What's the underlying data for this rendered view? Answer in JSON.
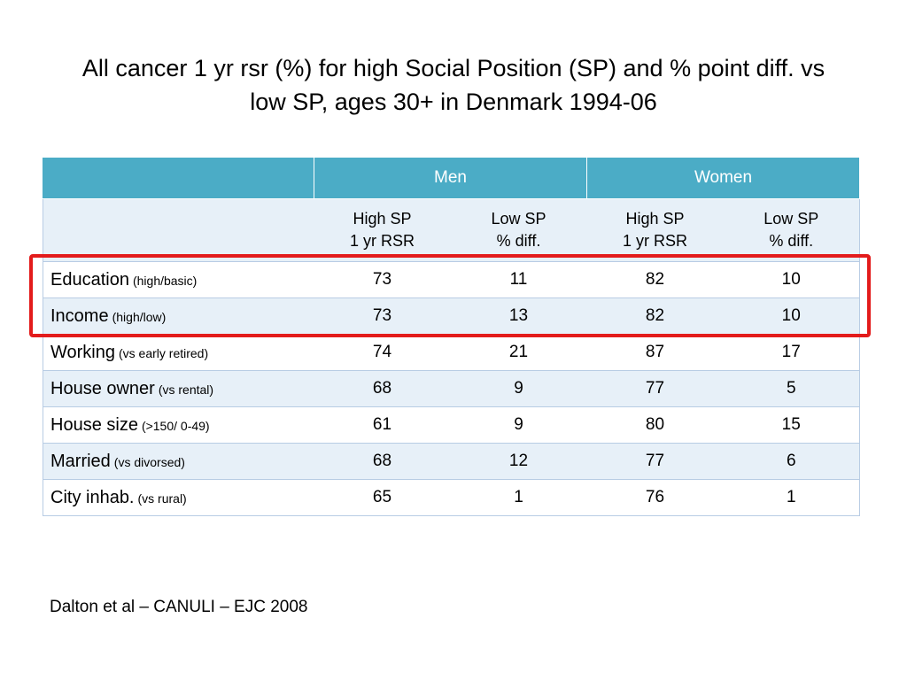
{
  "title": {
    "line1": "All cancer 1 yr rsr (%) for high Social Position (SP) and % point diff. vs",
    "line2": "low SP, ages 30+ in Denmark 1994-06"
  },
  "table": {
    "groups": [
      "Men",
      "Women"
    ],
    "subheaders": [
      {
        "line1": "High SP",
        "line2": "1 yr RSR"
      },
      {
        "line1": "Low SP",
        "line2": "% diff."
      },
      {
        "line1": "High SP",
        "line2": "1 yr RSR"
      },
      {
        "line1": "Low SP",
        "line2": "% diff."
      }
    ],
    "rows": [
      {
        "label": "Education",
        "note": "(high/basic)",
        "values": [
          "73",
          "11",
          "82",
          "10"
        ]
      },
      {
        "label": "Income",
        "note": "(high/low)",
        "values": [
          "73",
          "13",
          "82",
          "10"
        ]
      },
      {
        "label": "Working",
        "note": "(vs early retired)",
        "values": [
          "74",
          "21",
          "87",
          "17"
        ]
      },
      {
        "label": "House owner",
        "note": "(vs rental)",
        "values": [
          "68",
          "9",
          "77",
          "5"
        ]
      },
      {
        "label": "House size",
        "note": "(>150/ 0-49)",
        "values": [
          "61",
          "9",
          "80",
          "15"
        ]
      },
      {
        "label": "Married",
        "note": "(vs divorsed)",
        "values": [
          "68",
          "12",
          "77",
          "6"
        ]
      },
      {
        "label": "City inhab.",
        "note": "(vs rural)",
        "values": [
          "65",
          "1",
          "76",
          "1"
        ]
      }
    ]
  },
  "highlight": {
    "color": "#e31b1b",
    "rows_highlighted": [
      "Education",
      "Income"
    ]
  },
  "colors": {
    "header": "#4bacc6",
    "band": "#e7f0f8",
    "border": "#b8cce4"
  },
  "footnote": "Dalton et al – CANULI – EJC 2008"
}
